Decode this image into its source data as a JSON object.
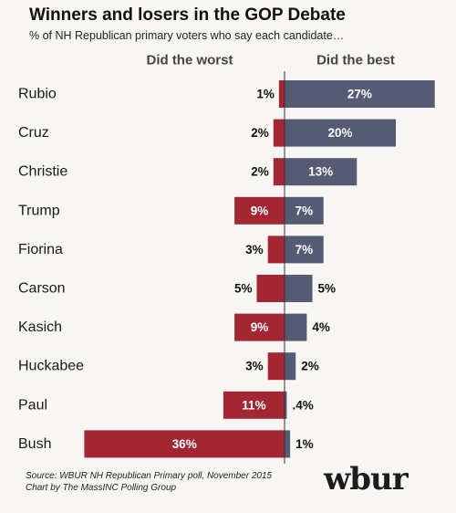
{
  "header": {
    "title": "Winners and losers in the GOP Debate",
    "subtitle": "% of NH Republican primary voters who say each candidate…"
  },
  "footer": {
    "source_line1": "Source: WBUR NH Republican Primary poll, November 2015",
    "source_line2": "Chart by The MassINC Polling Group",
    "logo": "wbur"
  },
  "colors": {
    "worst": "#a32633",
    "best": "#555b73",
    "axis": "#333333"
  },
  "chart_data": {
    "type": "bar",
    "title": "Winners and losers in the GOP Debate",
    "subtitle": "% of NH Republican primary voters who say each candidate…",
    "categories": [
      "Rubio",
      "Cruz",
      "Christie",
      "Trump",
      "Fiorina",
      "Carson",
      "Kasich",
      "Huckabee",
      "Paul",
      "Bush"
    ],
    "series": [
      {
        "name": "Did the worst",
        "values": [
          1,
          2,
          2,
          9,
          3,
          5,
          9,
          3,
          11,
          36
        ],
        "labels": [
          "1%",
          "2%",
          "2%",
          "9%",
          "3%",
          "5%",
          "9%",
          "3%",
          "11%",
          "36%"
        ]
      },
      {
        "name": "Did the best",
        "values": [
          27,
          20,
          13,
          7,
          7,
          5,
          4,
          2,
          0.4,
          1
        ],
        "labels": [
          "27%",
          "20%",
          "13%",
          "7%",
          "7%",
          "5%",
          "4%",
          "2%",
          ".4%",
          "1%"
        ]
      }
    ],
    "orientation": "horizontal-diverging",
    "grid": false,
    "legend": "top"
  }
}
